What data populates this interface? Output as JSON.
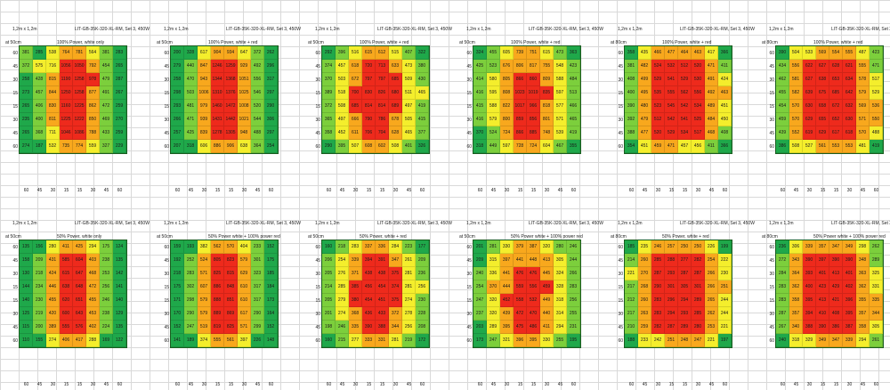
{
  "y_labels": [
    "60",
    "45",
    "30",
    "15",
    "15",
    "30",
    "45",
    "60"
  ],
  "x_labels": [
    "60",
    "45",
    "30",
    "15",
    "15",
    "30",
    "45",
    "60"
  ],
  "panels": [
    {
      "size": "1,2m x 1,2m",
      "name": "LIT-GB-35K-320-XL-RM, Set 3, 450W",
      "height": "at 50cm",
      "mode": "100% Power, white only",
      "values": [
        [
          381,
          285,
          538,
          764,
          781,
          564,
          381,
          283
        ],
        [
          372,
          575,
          716,
          1056,
          1050,
          792,
          454,
          265
        ],
        [
          258,
          428,
          815,
          1190,
          1258,
          978,
          479,
          287
        ],
        [
          273,
          457,
          844,
          1250,
          1258,
          877,
          491,
          267
        ],
        [
          265,
          406,
          830,
          1160,
          1225,
          862,
          472,
          259
        ],
        [
          235,
          400,
          811,
          1225,
          1222,
          850,
          469,
          270
        ],
        [
          265,
          368,
          711,
          1046,
          1086,
          788,
          433,
          259
        ],
        [
          274,
          187,
          532,
          735,
          774,
          559,
          327,
          229
        ]
      ]
    },
    {
      "size": "1,2m x 1,2m",
      "name": "LIT-GB-35K-320-XL-RM, Set 3, 450W",
      "height": "at 50cm",
      "mode": "100% Power, white + red",
      "values": [
        [
          200,
          328,
          617,
          904,
          934,
          647,
          372,
          262
        ],
        [
          279,
          440,
          847,
          1246,
          1259,
          929,
          492,
          296
        ],
        [
          258,
          470,
          943,
          1344,
          1368,
          1051,
          556,
          317
        ],
        [
          298,
          503,
          1006,
          1310,
          1376,
          1025,
          546,
          297
        ],
        [
          293,
          481,
          979,
          1460,
          1472,
          1008,
          520,
          290
        ],
        [
          266,
          471,
          939,
          1431,
          1442,
          1021,
          544,
          306
        ],
        [
          257,
          425,
          839,
          1278,
          1305,
          948,
          488,
          297
        ],
        [
          207,
          318,
          606,
          886,
          906,
          638,
          364,
          254
        ]
      ]
    },
    {
      "size": "1,2m x 1,2m",
      "name": "LIT-GB-35K-320-XL-RM, Set 3, 450W",
      "height": "at 50cm",
      "mode": "100% Power, white + red",
      "values": [
        [
          292,
          396,
          516,
          615,
          612,
          515,
          407,
          322
        ],
        [
          374,
          457,
          618,
          720,
          713,
          633,
          473,
          380
        ],
        [
          370,
          503,
          672,
          797,
          797,
          685,
          509,
          430
        ],
        [
          389,
          518,
          700,
          830,
          826,
          680,
          511,
          465
        ],
        [
          372,
          508,
          685,
          814,
          814,
          689,
          497,
          419
        ],
        [
          365,
          497,
          666,
          790,
          786,
          678,
          505,
          415
        ],
        [
          358,
          452,
          611,
          706,
          704,
          628,
          465,
          377
        ],
        [
          290,
          395,
          507,
          608,
          602,
          508,
          401,
          326
        ]
      ]
    },
    {
      "size": "1,2m x 1,2m",
      "name": "LIT-GB-35K-320-XL-RM, Set 3, 450W",
      "height": "at 50cm",
      "mode": "100% Power, white + red",
      "values": [
        [
          324,
          455,
          605,
          739,
          751,
          615,
          473,
          363
        ],
        [
          425,
          523,
          676,
          806,
          817,
          755,
          548,
          423
        ],
        [
          414,
          580,
          805,
          866,
          860,
          809,
          588,
          484
        ],
        [
          416,
          595,
          808,
          1023,
          1019,
          835,
          597,
          513
        ],
        [
          415,
          588,
          822,
          1017,
          966,
          818,
          577,
          466
        ],
        [
          416,
          579,
          800,
          859,
          856,
          801,
          571,
          465
        ],
        [
          370,
          524,
          724,
          866,
          885,
          748,
          539,
          419
        ],
        [
          318,
          449,
          597,
          728,
          724,
          604,
          467,
          355
        ]
      ]
    },
    {
      "size": "1,2m x 1,2m",
      "name": "LIT-GB-35K-320-XL-RM, Set 3, 450W",
      "height": "at 80cm",
      "mode": "100% Power, white + red",
      "values": [
        [
          358,
          435,
          466,
          477,
          464,
          463,
          417,
          366
        ],
        [
          381,
          482,
          524,
          532,
          512,
          520,
          471,
          411
        ],
        [
          408,
          499,
          529,
          541,
          529,
          530,
          491,
          424
        ],
        [
          400,
          495,
          535,
          555,
          562,
          556,
          492,
          463
        ],
        [
          390,
          480,
          523,
          545,
          542,
          534,
          489,
          451
        ],
        [
          392,
          479,
          512,
          542,
          541,
          525,
          484,
          450
        ],
        [
          388,
          477,
          520,
          529,
          534,
          517,
          468,
          408
        ],
        [
          354,
          451,
          459,
          471,
          457,
          456,
          411,
          366
        ]
      ]
    },
    {
      "size": "1,2m x 1,2m",
      "name": "LIT-GB-35K-320-XL-RM, Set 3, 450W",
      "height": "at 80cm",
      "mode": "100% Power, white + red",
      "values": [
        [
          390,
          504,
          533,
          569,
          554,
          555,
          487,
          423
        ],
        [
          434,
          556,
          622,
          627,
          628,
          621,
          555,
          471
        ],
        [
          462,
          581,
          627,
          638,
          653,
          634,
          578,
          517
        ],
        [
          455,
          582,
          639,
          675,
          685,
          642,
          579,
          529
        ],
        [
          454,
          570,
          630,
          658,
          672,
          632,
          569,
          536
        ],
        [
          459,
          570,
          629,
          655,
          652,
          630,
          571,
          550
        ],
        [
          439,
          552,
          619,
          629,
          617,
          618,
          570,
          488
        ],
        [
          386,
          508,
          527,
          561,
          553,
          553,
          481,
          419
        ]
      ]
    },
    {
      "size": "1,2m x 1,2m",
      "name": "LIT-GB-35K-320-XL-RM, Set 3, 450W",
      "height": "at 50cm",
      "mode": "50% Power, white only",
      "values": [
        [
          135,
          156,
          280,
          411,
          425,
          294,
          175,
          124
        ],
        [
          158,
          209,
          431,
          585,
          604,
          403,
          238,
          135
        ],
        [
          130,
          218,
          424,
          615,
          647,
          468,
          253,
          142
        ],
        [
          144,
          234,
          446,
          638,
          648,
          472,
          256,
          141
        ],
        [
          140,
          230,
          455,
          620,
          651,
          455,
          246,
          140
        ],
        [
          125,
          219,
          420,
          600,
          643,
          453,
          238,
          129
        ],
        [
          115,
          200,
          389,
          555,
          576,
          402,
          224,
          135
        ],
        [
          110,
          155,
          274,
          406,
          417,
          288,
          169,
          122
        ]
      ]
    },
    {
      "size": "1,2m x 1,2m",
      "name": "LIT-GB-35K-320-XL-RM, Set 3, 450W",
      "height": "at 50cm",
      "mode": "50% Power white + 100% power red",
      "values": [
        [
          159,
          193,
          382,
          562,
          570,
          404,
          233,
          152
        ],
        [
          192,
          252,
          524,
          805,
          823,
          579,
          301,
          175
        ],
        [
          218,
          283,
          571,
          825,
          815,
          629,
          323,
          185
        ],
        [
          175,
          302,
          607,
          886,
          848,
          610,
          317,
          184
        ],
        [
          171,
          298,
          579,
          888,
          851,
          610,
          317,
          173
        ],
        [
          170,
          290,
          579,
          889,
          869,
          617,
          290,
          164
        ],
        [
          152,
          247,
          519,
          819,
          825,
          571,
          299,
          152
        ],
        [
          141,
          189,
          374,
          555,
          561,
          397,
          226,
          148
        ]
      ]
    },
    {
      "size": "1,2m x 1,2m",
      "name": "LIT-GB-35K-320-XL-RM, Set 3, 450W",
      "height": "at 50cm",
      "mode": "50% Power, white + red",
      "values": [
        [
          160,
          218,
          283,
          337,
          336,
          284,
          223,
          177
        ],
        [
          206,
          254,
          339,
          394,
          391,
          347,
          261,
          209
        ],
        [
          205,
          276,
          371,
          438,
          438,
          375,
          281,
          236
        ],
        [
          214,
          285,
          385,
          456,
          454,
          374,
          281,
          256
        ],
        [
          205,
          279,
          380,
          454,
          451,
          375,
          274,
          230
        ],
        [
          201,
          274,
          368,
          436,
          433,
          372,
          278,
          228
        ],
        [
          198,
          246,
          335,
          390,
          388,
          344,
          256,
          208
        ],
        [
          160,
          215,
          277,
          333,
          331,
          281,
          219,
          172
        ]
      ]
    },
    {
      "size": "1,2m x 1,2m",
      "name": "LIT-GB-35K-320-XL-RM, Set 3, 450W",
      "height": "at 50cm",
      "mode": "50% Power white + 100% power red",
      "values": [
        [
          201,
          281,
          330,
          379,
          387,
          320,
          280,
          246
        ],
        [
          209,
          315,
          397,
          441,
          448,
          413,
          305,
          244
        ],
        [
          240,
          336,
          441,
          476,
          476,
          445,
          324,
          266
        ],
        [
          254,
          370,
          444,
          559,
          556,
          459,
          328,
          283
        ],
        [
          247,
          320,
          452,
          558,
          532,
          449,
          318,
          256
        ],
        [
          237,
          320,
          439,
          472,
          470,
          440,
          314,
          255
        ],
        [
          203,
          289,
          395,
          475,
          486,
          411,
          294,
          231
        ],
        [
          173,
          247,
          321,
          396,
          395,
          330,
          255,
          195
        ]
      ]
    },
    {
      "size": "1,2m x 1,2m",
      "name": "LIT-GB-35K-320-XL-RM, Set 3, 450W",
      "height": "at 80cm",
      "mode": "50% Power, white + red",
      "values": [
        [
          185,
          235,
          246,
          257,
          250,
          250,
          226,
          199
        ],
        [
          214,
          260,
          285,
          288,
          277,
          282,
          254,
          222
        ],
        [
          221,
          270,
          287,
          293,
          287,
          287,
          266,
          230
        ],
        [
          217,
          268,
          290,
          301,
          305,
          301,
          266,
          251
        ],
        [
          212,
          260,
          283,
          296,
          294,
          289,
          265,
          244
        ],
        [
          217,
          263,
          283,
          294,
          293,
          285,
          262,
          244
        ],
        [
          210,
          259,
          282,
          287,
          289,
          280,
          253,
          221
        ],
        [
          188,
          233,
          242,
          251,
          248,
          247,
          221,
          197
        ]
      ]
    },
    {
      "size": "1,2m x 1,2m",
      "name": "LIT-GB-35K-320-XL-RM, Set 3, 450W",
      "height": "at 80cm",
      "mode": "50% Power white + 100% power red",
      "values": [
        [
          236,
          306,
          339,
          357,
          347,
          349,
          298,
          262
        ],
        [
          272,
          343,
          390,
          397,
          390,
          390,
          348,
          289
        ],
        [
          284,
          364,
          393,
          401,
          413,
          401,
          363,
          325
        ],
        [
          283,
          362,
          400,
          423,
          429,
          402,
          362,
          331
        ],
        [
          283,
          358,
          395,
          413,
          421,
          396,
          355,
          335
        ],
        [
          287,
          357,
          394,
          410,
          408,
          395,
          357,
          344
        ],
        [
          267,
          340,
          388,
          390,
          386,
          387,
          358,
          305
        ],
        [
          240,
          318,
          329,
          349,
          347,
          339,
          294,
          261
        ]
      ]
    }
  ],
  "colors": {
    "green_dark": "#1fa84a",
    "green_light": "#7ccf3c",
    "yellow": "#f4ee2c",
    "orange": "#f8a81d",
    "red": "#ee2a1c"
  }
}
